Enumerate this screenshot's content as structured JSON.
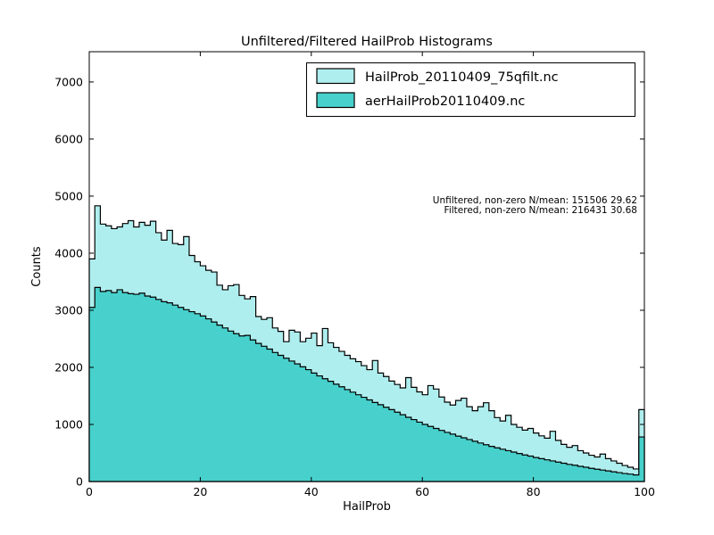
{
  "chart_data": {
    "type": "bar",
    "subtype": "stepfilled-histogram",
    "title": "Unfiltered/Filtered HailProb Histograms",
    "xlabel": "HailProb",
    "ylabel": "Counts",
    "xlim": [
      0,
      100
    ],
    "ylim": [
      0,
      7530
    ],
    "xticks": [
      0,
      20,
      40,
      60,
      80,
      100
    ],
    "yticks": [
      0,
      1000,
      2000,
      3000,
      4000,
      5000,
      6000,
      7000
    ],
    "grid": false,
    "legend_position": "upper center",
    "bin_start": 0,
    "bin_width": 1,
    "annotations": [
      "Unfiltered, non-zero N/mean: 151506 29.62",
      "Filtered, non-zero N/mean: 216431 30.68"
    ],
    "colors": {
      "filtered_fill": "#AFEEEE",
      "unfiltered_fill": "#48D1CC",
      "edge": "#000000",
      "background": "#ffffff"
    },
    "series": [
      {
        "name": "HailProb_20110409_75qfilt.nc",
        "role": "filtered",
        "fill": "#AFEEEE",
        "edge": "#000000",
        "values": [
          3900,
          4830,
          4510,
          4480,
          4430,
          4460,
          4520,
          4570,
          4460,
          4540,
          4490,
          4560,
          4360,
          4230,
          4400,
          4170,
          4150,
          4290,
          3960,
          3850,
          3780,
          3700,
          3670,
          3440,
          3360,
          3430,
          3450,
          3260,
          3200,
          3240,
          2890,
          2840,
          2870,
          2690,
          2630,
          2450,
          2650,
          2620,
          2450,
          2510,
          2600,
          2380,
          2680,
          2430,
          2350,
          2280,
          2210,
          2150,
          2100,
          2030,
          1960,
          2120,
          1900,
          1840,
          1760,
          1700,
          1640,
          1820,
          1650,
          1570,
          1520,
          1680,
          1620,
          1480,
          1390,
          1340,
          1420,
          1460,
          1310,
          1240,
          1310,
          1380,
          1240,
          1120,
          1060,
          1160,
          1000,
          950,
          900,
          930,
          850,
          800,
          760,
          880,
          720,
          650,
          600,
          630,
          540,
          500,
          460,
          430,
          480,
          400,
          360,
          320,
          280,
          250,
          220,
          1260
        ]
      },
      {
        "name": "aerHailProb20110409.nc",
        "role": "unfiltered",
        "fill": "#48D1CC",
        "edge": "#000000",
        "values": [
          3050,
          3400,
          3330,
          3345,
          3310,
          3360,
          3310,
          3290,
          3280,
          3300,
          3250,
          3230,
          3190,
          3150,
          3130,
          3090,
          3050,
          3010,
          2975,
          2940,
          2900,
          2850,
          2795,
          2740,
          2690,
          2635,
          2590,
          2550,
          2560,
          2480,
          2420,
          2370,
          2320,
          2260,
          2210,
          2160,
          2110,
          2060,
          2010,
          1960,
          1900,
          1850,
          1800,
          1755,
          1705,
          1660,
          1610,
          1565,
          1520,
          1475,
          1430,
          1385,
          1345,
          1300,
          1260,
          1215,
          1170,
          1125,
          1085,
          1040,
          1000,
          965,
          930,
          895,
          860,
          830,
          795,
          765,
          735,
          705,
          675,
          645,
          615,
          590,
          565,
          540,
          515,
          490,
          465,
          445,
          420,
          400,
          380,
          360,
          340,
          320,
          300,
          285,
          265,
          250,
          230,
          215,
          200,
          185,
          170,
          155,
          140,
          130,
          115,
          780
        ]
      }
    ]
  }
}
